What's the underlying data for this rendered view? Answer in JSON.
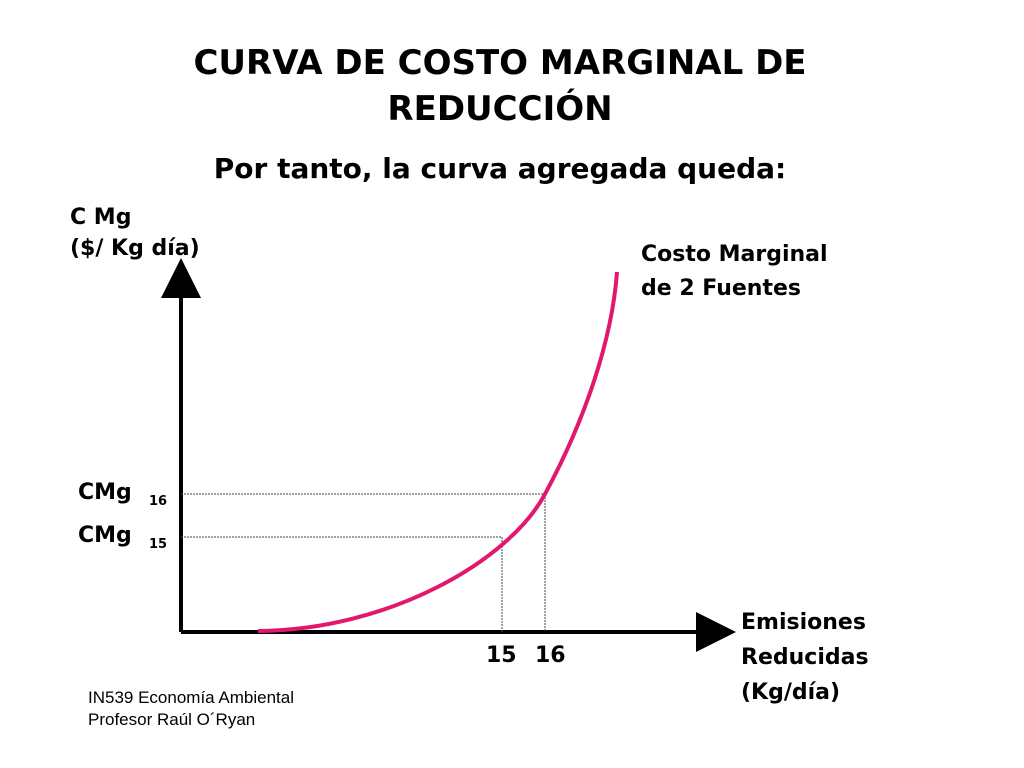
{
  "slide": {
    "title_line1": "CURVA DE COSTO MARGINAL DE",
    "title_line2": "REDUCCIÓN",
    "subtitle": "Por tanto, la curva agregada queda:"
  },
  "diagram": {
    "y_axis_label_line1": "C Mg",
    "y_axis_label_line2": "($/ Kg día)",
    "x_axis_label_line1": "Emisiones",
    "x_axis_label_line2": "Reducidas",
    "x_axis_label_line3": "(Kg/día)",
    "curve_label_line1": "Costo Marginal",
    "curve_label_line2": "de 2 Fuentes",
    "curve_color": "#e0196e",
    "axis_color": "#000000",
    "ticks": {
      "x15": "15",
      "x16": "16",
      "cmg16_main": "CMg",
      "cmg16_sub": "16",
      "cmg15_main": "CMg",
      "cmg15_sub": "15"
    }
  },
  "footer": {
    "course": "IN539 Economía Ambiental",
    "professor": "Profesor Raúl O´Ryan"
  }
}
